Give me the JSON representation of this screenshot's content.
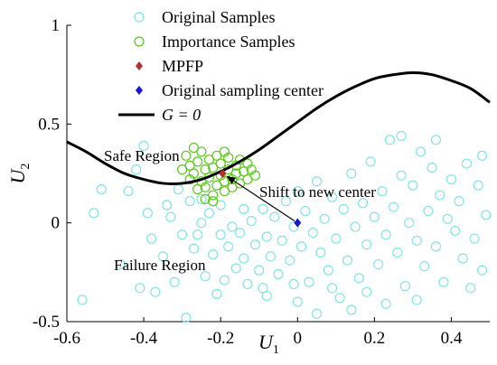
{
  "chart_data": {
    "type": "scatter",
    "xlim": [
      -0.6,
      0.5
    ],
    "ylim": [
      -0.5,
      1
    ],
    "x_ticks": [
      -0.6,
      -0.4,
      -0.2,
      0,
      0.2,
      0.4
    ],
    "y_ticks": [
      -0.5,
      0,
      0.5,
      1
    ],
    "x_tick_labels": [
      "-0.6",
      "-0.4",
      "-0.2",
      "0",
      "0.2",
      "0.4"
    ],
    "y_tick_labels": [
      "-0.5",
      "0",
      "0.5",
      "1"
    ],
    "xlabel": "U",
    "xlabel_sub": "1",
    "ylabel": "U",
    "ylabel_sub": "2",
    "grid": false,
    "legend_position": "top-left",
    "legend": [
      {
        "label": "Original Samples",
        "marker": "circle",
        "color": "#7fe5e5"
      },
      {
        "label": "Importance Samples",
        "marker": "circle",
        "color": "#5cc91a"
      },
      {
        "label": "MPFP",
        "marker": "diamond",
        "color": "#b03030"
      },
      {
        "label": "Original sampling center",
        "marker": "diamond",
        "color": "#1515d8"
      },
      {
        "label": "G = 0",
        "marker": "line",
        "color": "#000000"
      }
    ],
    "annotations": {
      "safe_region": "Safe Region",
      "failure_region": "Failure Region",
      "shift_label": "Shift to new center"
    },
    "limit_state_curve": {
      "label": "G = 0",
      "x": [
        -0.6,
        -0.55,
        -0.5,
        -0.45,
        -0.4,
        -0.35,
        -0.3,
        -0.25,
        -0.2,
        -0.15,
        -0.1,
        -0.05,
        0.0,
        0.05,
        0.1,
        0.15,
        0.2,
        0.25,
        0.3,
        0.35,
        0.4,
        0.45,
        0.5
      ],
      "y": [
        0.41,
        0.36,
        0.3,
        0.25,
        0.22,
        0.2,
        0.2,
        0.22,
        0.26,
        0.31,
        0.37,
        0.44,
        0.51,
        0.58,
        0.64,
        0.69,
        0.73,
        0.75,
        0.76,
        0.75,
        0.72,
        0.68,
        0.61
      ]
    },
    "series": [
      {
        "name": "Original Samples",
        "marker": "circle",
        "color": "#7fe5e5",
        "points": [
          [
            -0.56,
            -0.39
          ],
          [
            -0.53,
            0.05
          ],
          [
            -0.51,
            0.17
          ],
          [
            -0.46,
            -0.21
          ],
          [
            -0.44,
            0.16
          ],
          [
            -0.42,
            0.27
          ],
          [
            -0.41,
            -0.33
          ],
          [
            -0.4,
            0.39
          ],
          [
            -0.39,
            0.05
          ],
          [
            -0.38,
            -0.08
          ],
          [
            -0.37,
            -0.35
          ],
          [
            -0.35,
            -0.17
          ],
          [
            -0.34,
            0.09
          ],
          [
            -0.33,
            0.03
          ],
          [
            -0.32,
            -0.3
          ],
          [
            -0.31,
            0.17
          ],
          [
            -0.3,
            -0.06
          ],
          [
            -0.29,
            -0.48
          ],
          [
            -0.28,
            0.11
          ],
          [
            -0.27,
            -0.13
          ],
          [
            -0.26,
            -0.06
          ],
          [
            -0.25,
            0.12
          ],
          [
            -0.25,
            0.0
          ],
          [
            -0.24,
            -0.27
          ],
          [
            -0.23,
            0.05
          ],
          [
            -0.22,
            -0.16
          ],
          [
            -0.21,
            -0.36
          ],
          [
            -0.2,
            0.09
          ],
          [
            -0.2,
            -0.06
          ],
          [
            -0.19,
            -0.29
          ],
          [
            -0.18,
            -0.12
          ],
          [
            -0.17,
            -0.02
          ],
          [
            -0.16,
            -0.23
          ],
          [
            -0.15,
            -0.05
          ],
          [
            -0.14,
            0.07
          ],
          [
            -0.14,
            -0.18
          ],
          [
            -0.13,
            -0.31
          ],
          [
            -0.12,
            0.01
          ],
          [
            -0.11,
            -0.11
          ],
          [
            -0.1,
            -0.24
          ],
          [
            -0.09,
            0.07
          ],
          [
            -0.08,
            -0.07
          ],
          [
            -0.08,
            -0.37
          ],
          [
            -0.07,
            -0.17
          ],
          [
            -0.06,
            0.03
          ],
          [
            -0.05,
            -0.26
          ],
          [
            -0.04,
            -0.09
          ],
          [
            -0.03,
            0.11
          ],
          [
            -0.02,
            -0.19
          ],
          [
            -0.01,
            -0.02
          ],
          [
            0.0,
            -0.4
          ],
          [
            0.0,
            0.16
          ],
          [
            0.01,
            -0.12
          ],
          [
            0.02,
            0.06
          ],
          [
            0.03,
            -0.3
          ],
          [
            0.04,
            -0.05
          ],
          [
            0.05,
            0.21
          ],
          [
            0.06,
            -0.15
          ],
          [
            0.07,
            0.02
          ],
          [
            0.08,
            -0.24
          ],
          [
            0.09,
            0.13
          ],
          [
            0.1,
            -0.08
          ],
          [
            0.11,
            -0.38
          ],
          [
            0.12,
            0.07
          ],
          [
            0.13,
            -0.19
          ],
          [
            0.14,
            0.25
          ],
          [
            0.15,
            -0.02
          ],
          [
            0.16,
            -0.28
          ],
          [
            0.17,
            0.1
          ],
          [
            0.18,
            -0.11
          ],
          [
            0.19,
            0.31
          ],
          [
            0.2,
            0.03
          ],
          [
            0.21,
            -0.21
          ],
          [
            0.22,
            0.16
          ],
          [
            0.23,
            -0.06
          ],
          [
            0.24,
            0.42
          ],
          [
            0.25,
            0.08
          ],
          [
            0.26,
            -0.15
          ],
          [
            0.27,
            0.24
          ],
          [
            0.28,
            -0.32
          ],
          [
            0.29,
            0.0
          ],
          [
            0.3,
            0.19
          ],
          [
            0.31,
            -0.09
          ],
          [
            0.32,
            0.36
          ],
          [
            0.33,
            -0.22
          ],
          [
            0.34,
            0.06
          ],
          [
            0.35,
            0.28
          ],
          [
            0.36,
            -0.12
          ],
          [
            0.37,
            0.14
          ],
          [
            0.38,
            -0.3
          ],
          [
            0.39,
            0.02
          ],
          [
            0.4,
            0.22
          ],
          [
            0.41,
            -0.04
          ],
          [
            0.42,
            0.11
          ],
          [
            0.43,
            -0.18
          ],
          [
            0.44,
            0.3
          ],
          [
            0.46,
            -0.08
          ],
          [
            0.47,
            0.19
          ],
          [
            0.48,
            -0.24
          ],
          [
            0.49,
            0.04
          ],
          [
            0.48,
            0.34
          ],
          [
            0.45,
            -0.33
          ],
          [
            0.36,
            0.42
          ],
          [
            0.27,
            0.44
          ],
          [
            0.18,
            -0.35
          ],
          [
            0.09,
            -0.33
          ],
          [
            -0.01,
            -0.31
          ],
          [
            0.05,
            -0.46
          ],
          [
            0.14,
            -0.44
          ],
          [
            -0.09,
            -0.33
          ],
          [
            0.23,
            -0.41
          ],
          [
            0.31,
            -0.39
          ]
        ]
      },
      {
        "name": "Importance Samples",
        "marker": "circle",
        "color": "#5cc91a",
        "points": [
          [
            -0.29,
            0.34
          ],
          [
            -0.28,
            0.29
          ],
          [
            -0.27,
            0.25
          ],
          [
            -0.26,
            0.31
          ],
          [
            -0.25,
            0.36
          ],
          [
            -0.25,
            0.21
          ],
          [
            -0.24,
            0.27
          ],
          [
            -0.24,
            0.18
          ],
          [
            -0.23,
            0.32
          ],
          [
            -0.23,
            0.23
          ],
          [
            -0.22,
            0.28
          ],
          [
            -0.22,
            0.14
          ],
          [
            -0.21,
            0.34
          ],
          [
            -0.21,
            0.19
          ],
          [
            -0.2,
            0.24
          ],
          [
            -0.2,
            0.3
          ],
          [
            -0.19,
            0.16
          ],
          [
            -0.19,
            0.21
          ],
          [
            -0.18,
            0.27
          ],
          [
            -0.18,
            0.33
          ],
          [
            -0.17,
            0.22
          ],
          [
            -0.17,
            0.18
          ],
          [
            -0.16,
            0.29
          ],
          [
            -0.16,
            0.25
          ],
          [
            -0.15,
            0.2
          ],
          [
            -0.15,
            0.32
          ],
          [
            -0.14,
            0.26
          ],
          [
            -0.13,
            0.22
          ],
          [
            -0.13,
            0.3
          ],
          [
            -0.12,
            0.27
          ],
          [
            -0.28,
            0.22
          ],
          [
            -0.26,
            0.17
          ],
          [
            -0.24,
            0.12
          ],
          [
            -0.22,
            0.11
          ],
          [
            -0.3,
            0.27
          ],
          [
            -0.27,
            0.38
          ],
          [
            -0.19,
            0.36
          ],
          [
            -0.11,
            0.24
          ]
        ]
      },
      {
        "name": "MPFP",
        "marker": "diamond",
        "color": "#b03030",
        "points": [
          [
            -0.195,
            0.25
          ]
        ]
      },
      {
        "name": "Original sampling center",
        "marker": "diamond",
        "color": "#1515d8",
        "points": [
          [
            0.0,
            0.0
          ]
        ]
      }
    ],
    "arrow": {
      "from": [
        0.0,
        0.0
      ],
      "to": [
        -0.195,
        0.25
      ]
    }
  }
}
